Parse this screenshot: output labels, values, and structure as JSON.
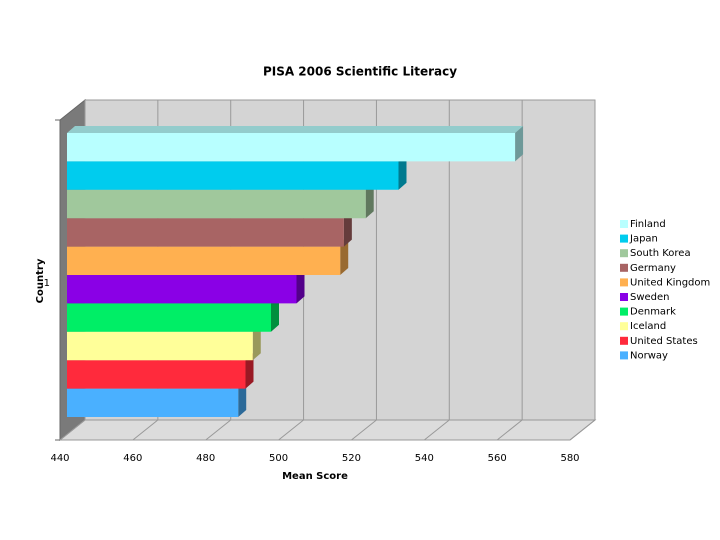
{
  "chart_data": {
    "type": "bar3d",
    "orientation": "horizontal",
    "title": "PISA 2006 Scientific Literacy",
    "x_label": "Mean Score",
    "y_label": "Country",
    "categories": [
      "1"
    ],
    "series": [
      {
        "name": "Finland",
        "color": "#b8ffff",
        "values": [
          563
        ]
      },
      {
        "name": "Japan",
        "color": "#00ccee",
        "values": [
          531
        ]
      },
      {
        "name": "South Korea",
        "color": "#a0c89c",
        "values": [
          522
        ]
      },
      {
        "name": "Germany",
        "color": "#a86464",
        "values": [
          516
        ]
      },
      {
        "name": "United Kingdom",
        "color": "#ffb050",
        "values": [
          515
        ]
      },
      {
        "name": "Sweden",
        "color": "#8a00e6",
        "values": [
          503
        ]
      },
      {
        "name": "Denmark",
        "color": "#00ee66",
        "values": [
          496
        ]
      },
      {
        "name": "Iceland",
        "color": "#ffff99",
        "values": [
          491
        ]
      },
      {
        "name": "United States",
        "color": "#ff2a3c",
        "values": [
          489
        ]
      },
      {
        "name": "Norway",
        "color": "#4ab0ff",
        "values": [
          487
        ]
      }
    ],
    "xlim": [
      440,
      580
    ],
    "xticks": [
      440,
      460,
      480,
      500,
      520,
      540,
      560,
      580
    ],
    "grid": true,
    "legend": "right"
  }
}
